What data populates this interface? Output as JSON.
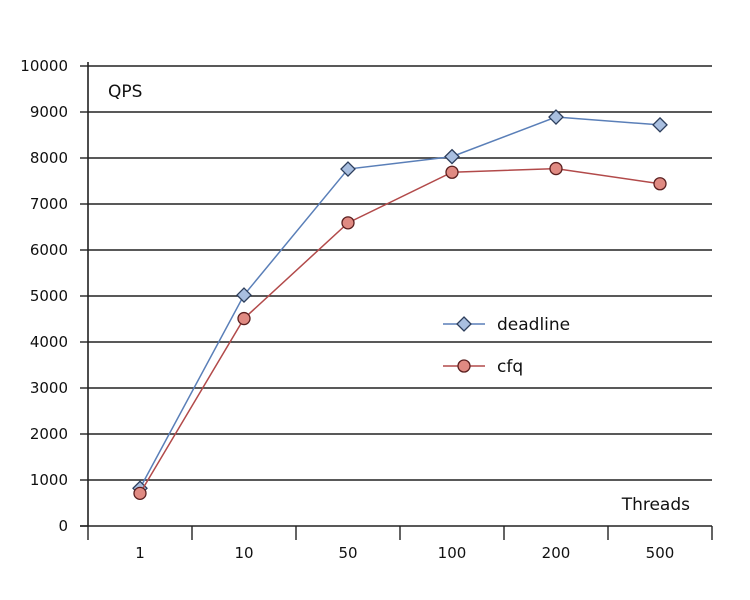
{
  "chart_data": {
    "type": "line",
    "title": "",
    "ylabel": "QPS",
    "xlabel": "Threads",
    "categories": [
      "1",
      "10",
      "50",
      "100",
      "200",
      "500"
    ],
    "ylim": [
      0,
      10000
    ],
    "yticks": [
      "0",
      "1000",
      "2000",
      "3000",
      "4000",
      "5000",
      "6000",
      "7000",
      "8000",
      "9000",
      "10000"
    ],
    "grid": "horizontal",
    "legend_position": "center-right",
    "series": [
      {
        "name": "deadline",
        "values": [
          820,
          5020,
          7760,
          8030,
          8890,
          8720
        ],
        "color": "#5a7fb8",
        "fill": "#a9bfe0",
        "marker": "diamond"
      },
      {
        "name": "cfq",
        "values": [
          710,
          4510,
          6590,
          7690,
          7770,
          7440
        ],
        "color": "#b24a4a",
        "fill": "#e08a82",
        "marker": "circle"
      }
    ]
  }
}
